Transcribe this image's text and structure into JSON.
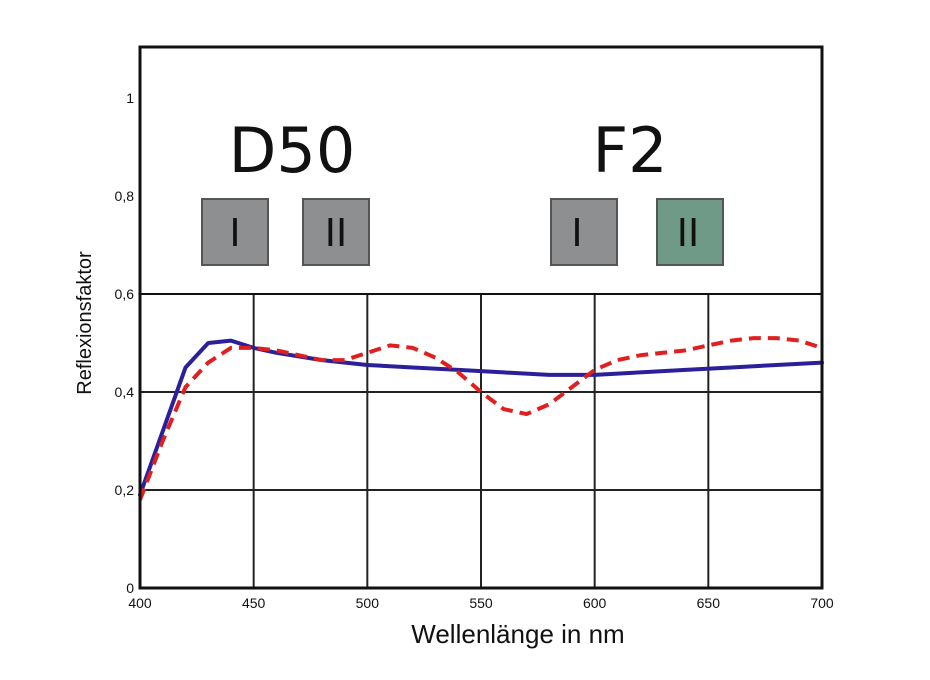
{
  "chart_data": {
    "type": "line",
    "xlabel": "Wellenlänge in nm",
    "ylabel": "Reflexionsfaktor",
    "xlim": [
      400,
      700
    ],
    "ylim": [
      0,
      1.1
    ],
    "xticks": [
      400,
      450,
      500,
      550,
      600,
      650,
      700
    ],
    "xtick_labels": [
      "400",
      "450",
      "500",
      "550",
      "600",
      "650",
      "700"
    ],
    "yticks": [
      0,
      0.2,
      0.4,
      0.6,
      0.8,
      1
    ],
    "ytick_labels": [
      "0",
      "0,2",
      "0,4",
      "0,6",
      "0,8",
      "1"
    ],
    "grid": "vertical and horizontal lines below 0,6",
    "series": [
      {
        "color": "#2b1f9a",
        "style": "solid",
        "x": [
          400,
          420,
          430,
          440,
          450,
          460,
          480,
          500,
          520,
          540,
          560,
          580,
          600,
          620,
          640,
          660,
          680,
          700
        ],
        "y": [
          0.19,
          0.45,
          0.5,
          0.505,
          0.49,
          0.48,
          0.465,
          0.455,
          0.45,
          0.445,
          0.44,
          0.435,
          0.435,
          0.44,
          0.445,
          0.45,
          0.455,
          0.46
        ]
      },
      {
        "color": "#e02020",
        "style": "dashed",
        "x": [
          400,
          410,
          420,
          430,
          440,
          450,
          460,
          470,
          480,
          490,
          500,
          510,
          520,
          530,
          540,
          550,
          560,
          570,
          580,
          590,
          600,
          610,
          620,
          630,
          640,
          650,
          660,
          670,
          680,
          690,
          700
        ],
        "y": [
          0.18,
          0.3,
          0.41,
          0.46,
          0.49,
          0.49,
          0.485,
          0.475,
          0.465,
          0.465,
          0.48,
          0.495,
          0.49,
          0.47,
          0.44,
          0.4,
          0.365,
          0.355,
          0.375,
          0.41,
          0.445,
          0.465,
          0.475,
          0.48,
          0.485,
          0.495,
          0.505,
          0.51,
          0.51,
          0.505,
          0.49
        ]
      }
    ],
    "annotations": [
      {
        "label": "D50",
        "swatches": [
          {
            "label": "I",
            "color": "#8e8f91"
          },
          {
            "label": "II",
            "color": "#8e8f91"
          }
        ]
      },
      {
        "label": "F2",
        "swatches": [
          {
            "label": "I",
            "color": "#8e8f91"
          },
          {
            "label": "II",
            "color": "#6f9a88"
          }
        ]
      }
    ]
  }
}
